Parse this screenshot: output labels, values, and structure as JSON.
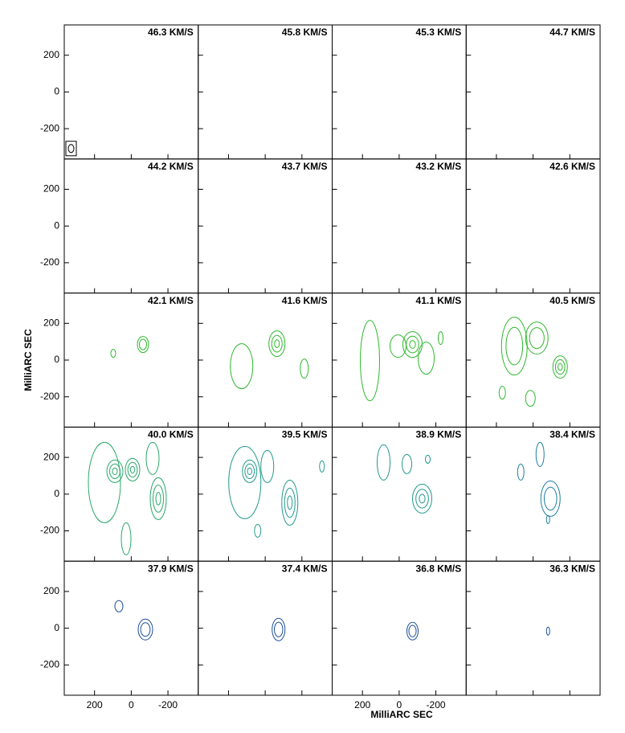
{
  "chart_data": {
    "type": "channel-map",
    "panels": [
      "46.3 KM/S",
      "45.8 KM/S",
      "45.3 KM/S",
      "44.7 KM/S",
      "44.2 KM/S",
      "43.7 KM/S",
      "43.2 KM/S",
      "42.6 KM/S",
      "42.1 KM/S",
      "41.6 KM/S",
      "41.1 KM/S",
      "40.5 KM/S",
      "40.0 KM/S",
      "39.5 KM/S",
      "38.9 KM/S",
      "38.4 KM/S",
      "37.9 KM/S",
      "37.4 KM/S",
      "36.8 KM/S",
      "36.3 KM/S"
    ],
    "xlabel": "MilliARC SEC",
    "ylabel": "MilliARC SEC",
    "xlim": [
      365,
      -365
    ],
    "ylim": [
      -365,
      365
    ],
    "xticks": [
      200,
      0,
      -200
    ],
    "yticks": [
      200,
      0,
      -200
    ]
  }
}
